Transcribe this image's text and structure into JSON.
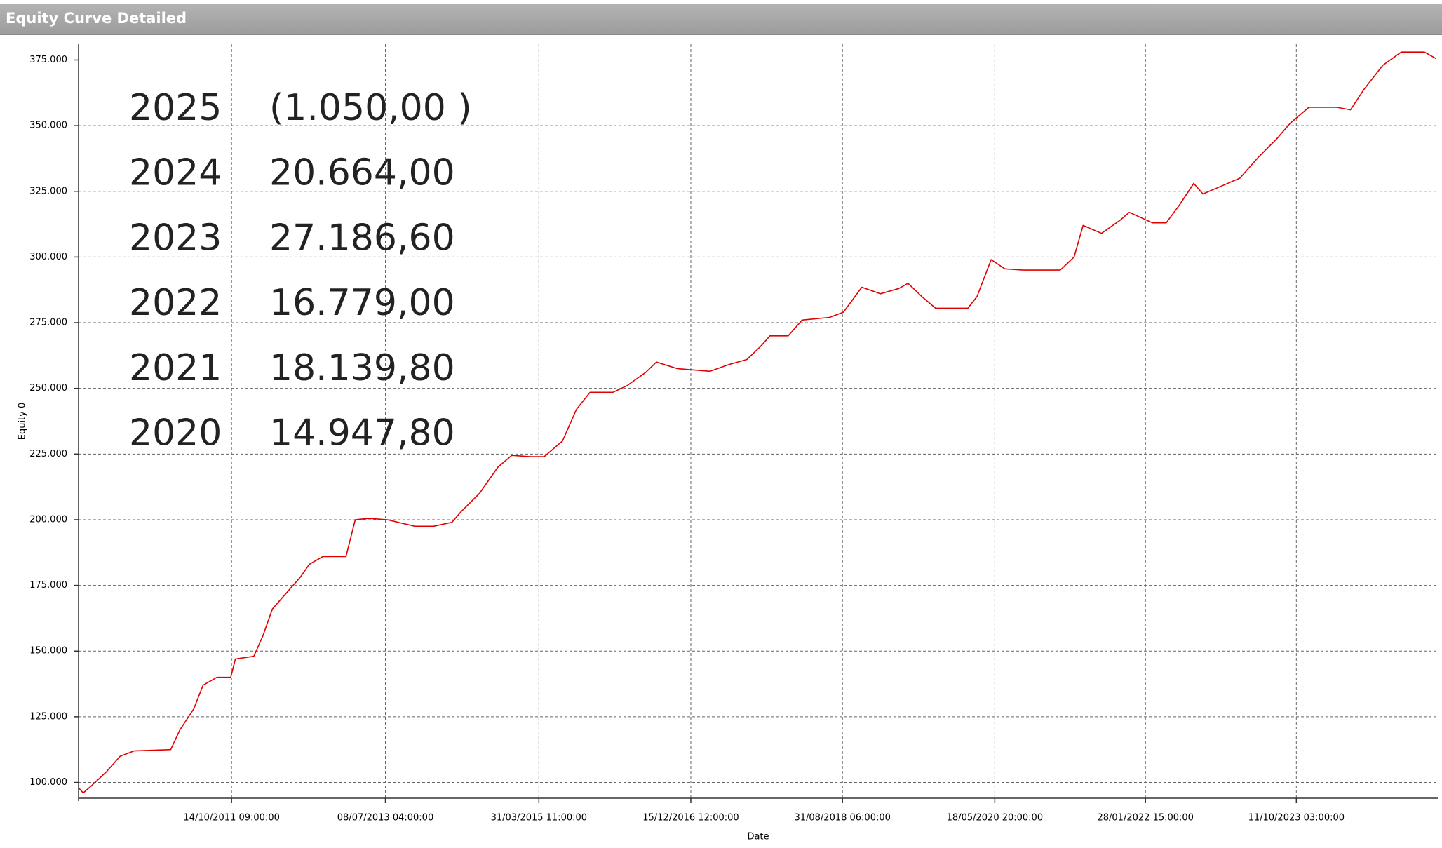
{
  "chart_data": {
    "type": "line",
    "title": "Equity Curve Detailed",
    "xlabel": "Date",
    "ylabel": "Equity 0",
    "color": "#e00000",
    "grid": true,
    "xlim": [
      "2010-01-23",
      "2025-05-15"
    ],
    "ylim": [
      94000,
      381000
    ],
    "yticks": [
      {
        "value": 100000,
        "label": "100.000"
      },
      {
        "value": 125000,
        "label": "125.000"
      },
      {
        "value": 150000,
        "label": "150.000"
      },
      {
        "value": 175000,
        "label": "175.000"
      },
      {
        "value": 200000,
        "label": "200.000"
      },
      {
        "value": 225000,
        "label": "225.000"
      },
      {
        "value": 250000,
        "label": "250.000"
      },
      {
        "value": 275000,
        "label": "275.000"
      },
      {
        "value": 300000,
        "label": "300.000"
      },
      {
        "value": 325000,
        "label": "325.000"
      },
      {
        "value": 350000,
        "label": "350.000"
      },
      {
        "value": 375000,
        "label": "375.000"
      }
    ],
    "xticks": [
      {
        "value": "2011-10-14T09:00:00",
        "label": "14/10/2011 09:00:00"
      },
      {
        "value": "2013-07-08T04:00:00",
        "label": "08/07/2013 04:00:00"
      },
      {
        "value": "2015-03-31T11:00:00",
        "label": "31/03/2015 11:00:00"
      },
      {
        "value": "2016-12-15T12:00:00",
        "label": "15/12/2016 12:00:00"
      },
      {
        "value": "2018-08-31T06:00:00",
        "label": "31/08/2018 06:00:00"
      },
      {
        "value": "2020-05-18T20:00:00",
        "label": "18/05/2020 20:00:00"
      },
      {
        "value": "2022-01-28T15:00:00",
        "label": "28/01/2022 15:00:00"
      },
      {
        "value": "2023-10-11T03:00:00",
        "label": "11/10/2023 03:00:00"
      }
    ],
    "x": [
      "2010-01-23",
      "2010-02-11",
      "2010-03-20",
      "2010-05-17",
      "2010-07-13",
      "2010-09-08",
      "2011-02-06",
      "2011-03-16",
      "2011-05-12",
      "2011-06-19",
      "2011-08-15",
      "2011-10-11",
      "2011-10-30",
      "2012-01-14",
      "2012-02-21",
      "2012-03-30",
      "2012-05-26",
      "2012-07-22",
      "2012-08-29",
      "2012-10-24",
      "2013-01-27",
      "2013-03-06",
      "2013-05-01",
      "2013-07-16",
      "2013-11-07",
      "2014-01-22",
      "2014-04-08",
      "2014-05-15",
      "2014-07-30",
      "2014-10-14",
      "2014-12-10",
      "2015-02-24",
      "2015-04-22",
      "2015-07-07",
      "2015-09-02",
      "2015-10-28",
      "2016-01-30",
      "2016-03-28",
      "2016-06-12",
      "2016-07-27",
      "2016-10-22",
      "2017-03-04",
      "2017-05-19",
      "2017-08-03",
      "2017-09-29",
      "2017-11-06",
      "2018-01-20",
      "2018-03-18",
      "2018-07-09",
      "2018-09-04",
      "2018-11-19",
      "2019-02-03",
      "2019-04-20",
      "2019-05-28",
      "2019-07-23",
      "2019-09-18",
      "2020-01-29",
      "2020-03-07",
      "2020-05-04",
      "2020-06-29",
      "2020-09-13",
      "2021-02-12",
      "2021-04-10",
      "2021-05-17",
      "2021-08-01",
      "2021-10-16",
      "2021-11-23",
      "2022-02-26",
      "2022-04-24",
      "2022-06-19",
      "2022-08-15",
      "2022-09-22",
      "2022-12-07",
      "2023-02-21",
      "2023-05-08",
      "2023-07-23",
      "2023-09-17",
      "2023-12-02",
      "2024-03-25",
      "2024-05-21",
      "2024-07-17",
      "2024-10-01",
      "2024-12-16",
      "2025-03-21",
      "2025-05-08"
    ],
    "values": [
      98000,
      96000,
      99000,
      104000,
      110000,
      112000,
      112500,
      120000,
      128000,
      137000,
      140000,
      140000,
      147000,
      148000,
      156000,
      166000,
      172000,
      178000,
      183000,
      186000,
      186000,
      200000,
      200500,
      200000,
      197500,
      197500,
      199000,
      203000,
      210000,
      220000,
      224500,
      224000,
      224000,
      230000,
      242000,
      248500,
      248500,
      251000,
      256000,
      260000,
      257500,
      256500,
      259000,
      261000,
      266000,
      270000,
      270000,
      276000,
      277000,
      279000,
      288500,
      286000,
      288000,
      290000,
      285000,
      280500,
      280500,
      285000,
      299000,
      295500,
      295000,
      295000,
      300000,
      312000,
      309000,
      314000,
      317000,
      313000,
      313000,
      320000,
      328000,
      324000,
      327000,
      330000,
      338000,
      345000,
      351000,
      357000,
      357000,
      356000,
      364000,
      373000,
      378000,
      378000,
      375500
    ],
    "annotations": [
      {
        "year": "2025",
        "value": "(1.050,00 )",
        "color": "#ff3b4e"
      },
      {
        "year": "2024",
        "value": "20.664,00",
        "color": "#222222"
      },
      {
        "year": "2023",
        "value": "27.186,60",
        "color": "#222222"
      },
      {
        "year": "2022",
        "value": "16.779,00",
        "color": "#222222"
      },
      {
        "year": "2021",
        "value": "18.139,80",
        "color": "#222222"
      },
      {
        "year": "2020",
        "value": "14.947,80",
        "color": "#222222"
      }
    ]
  }
}
